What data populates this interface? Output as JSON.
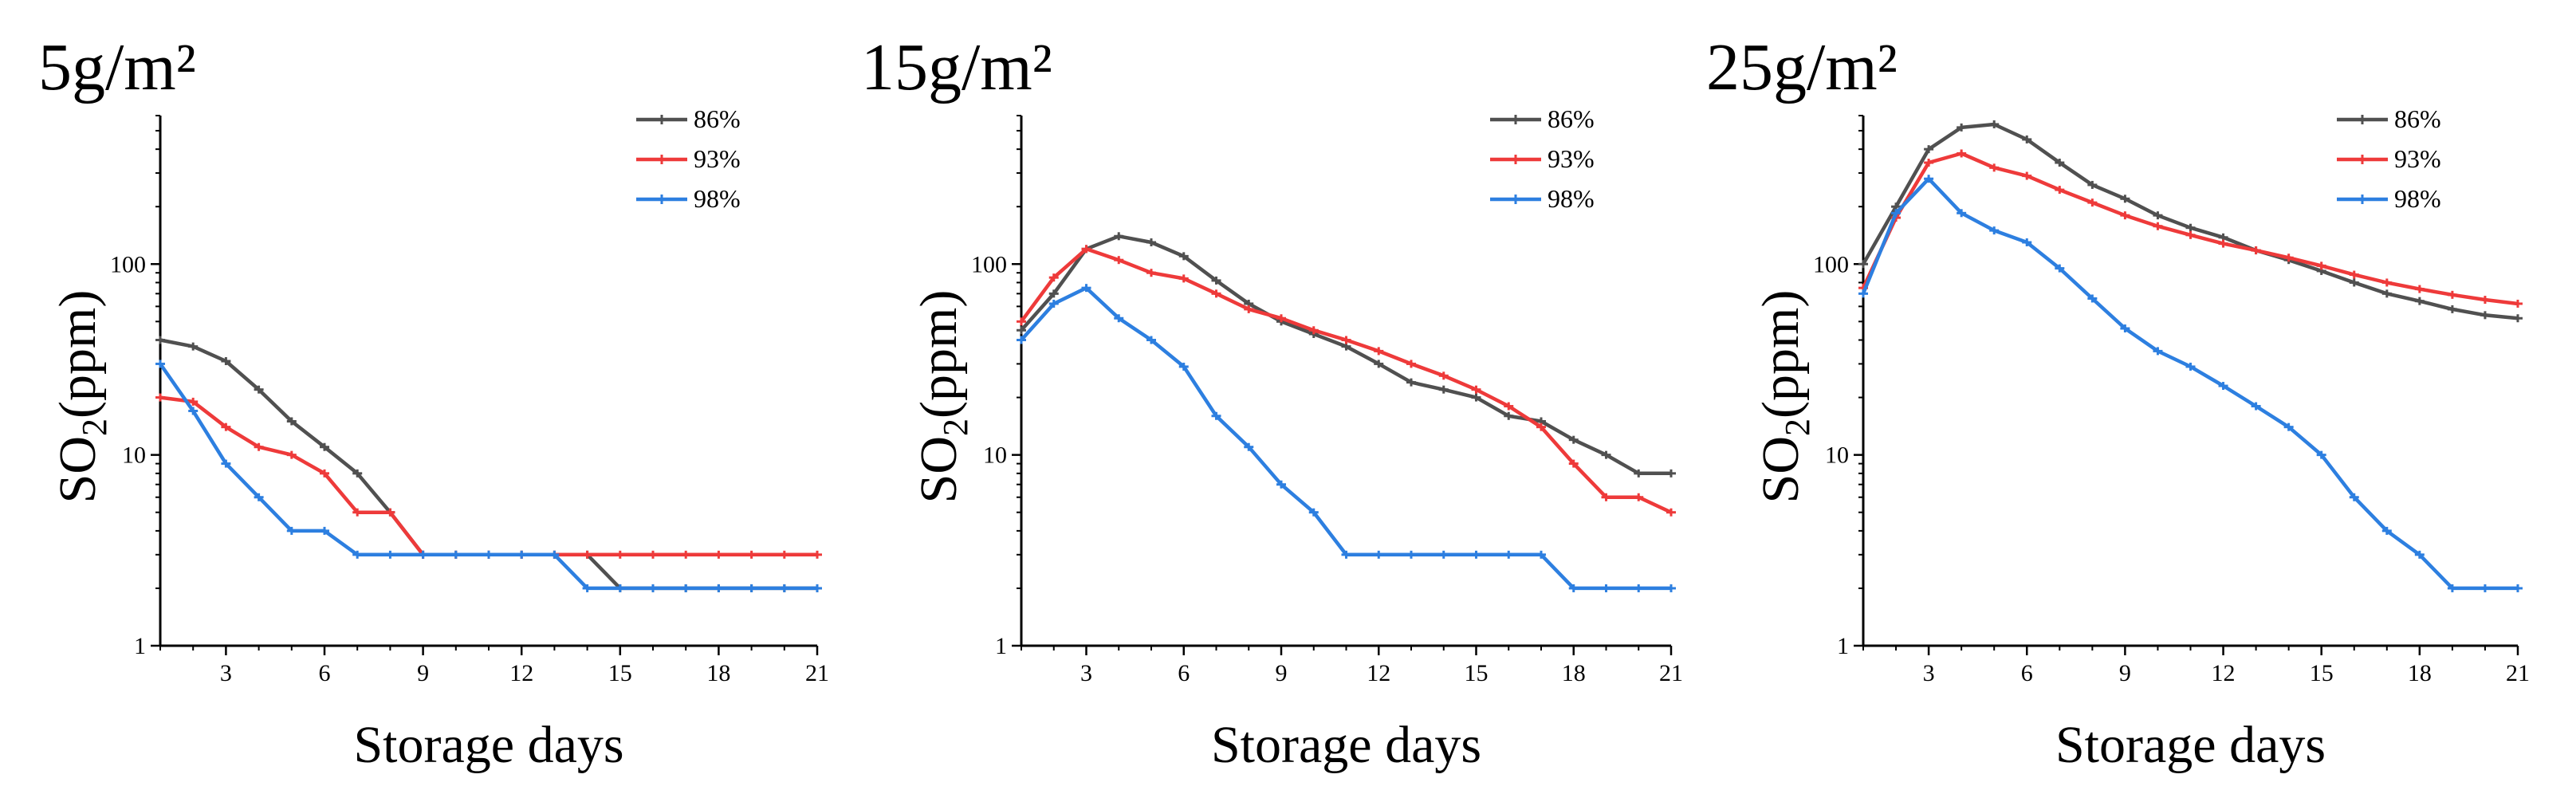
{
  "chart_data": [
    {
      "type": "line",
      "title": "5g/m²",
      "xlabel": "Storage days",
      "ylabel_main": "SO",
      "ylabel_sub": "2",
      "ylabel_tail": "(ppm)",
      "yscale": "log",
      "xlim": [
        1,
        21
      ],
      "ylim": [
        1,
        600
      ],
      "xticks": [
        3,
        6,
        9,
        12,
        15,
        18,
        21
      ],
      "yticks": [
        1,
        10,
        100
      ],
      "legend": "top-right",
      "x": [
        1,
        2,
        3,
        4,
        5,
        6,
        7,
        8,
        9,
        10,
        11,
        12,
        13,
        14,
        15,
        16,
        17,
        18,
        19,
        20,
        21
      ],
      "series": [
        {
          "name": "86%",
          "color": "#505050",
          "values": [
            40,
            37,
            31,
            22,
            15,
            11,
            8,
            5,
            3,
            3,
            3,
            3,
            3,
            3,
            2,
            2,
            2,
            2,
            2,
            2,
            2
          ]
        },
        {
          "name": "93%",
          "color": "#ee3a3a",
          "values": [
            20,
            19,
            14,
            11,
            10,
            8,
            5,
            5,
            3,
            3,
            3,
            3,
            3,
            3,
            3,
            3,
            3,
            3,
            3,
            3,
            3
          ]
        },
        {
          "name": "98%",
          "color": "#2d7fe0",
          "values": [
            30,
            17,
            9,
            6,
            4,
            4,
            3,
            3,
            3,
            3,
            3,
            3,
            3,
            2,
            2,
            2,
            2,
            2,
            2,
            2,
            2
          ]
        }
      ]
    },
    {
      "type": "line",
      "title": "15g/m²",
      "xlabel": "Storage days",
      "ylabel_main": "SO",
      "ylabel_sub": "2",
      "ylabel_tail": "(ppm)",
      "yscale": "log",
      "xlim": [
        1,
        21
      ],
      "ylim": [
        1,
        600
      ],
      "xticks": [
        3,
        6,
        9,
        12,
        15,
        18,
        21
      ],
      "yticks": [
        1,
        10,
        100
      ],
      "legend": "top-right",
      "x": [
        1,
        2,
        3,
        4,
        5,
        6,
        7,
        8,
        9,
        10,
        11,
        12,
        13,
        14,
        15,
        16,
        17,
        18,
        19,
        20,
        21
      ],
      "series": [
        {
          "name": "86%",
          "color": "#505050",
          "values": [
            45,
            70,
            120,
            140,
            130,
            110,
            82,
            62,
            50,
            43,
            37,
            30,
            24,
            22,
            20,
            16,
            15,
            12,
            10,
            8,
            8
          ]
        },
        {
          "name": "93%",
          "color": "#ee3a3a",
          "values": [
            50,
            85,
            120,
            105,
            90,
            84,
            70,
            58,
            52,
            45,
            40,
            35,
            30,
            26,
            22,
            18,
            14,
            9,
            6,
            6,
            5
          ]
        },
        {
          "name": "98%",
          "color": "#2d7fe0",
          "values": [
            40,
            62,
            75,
            52,
            40,
            29,
            16,
            11,
            7,
            5,
            3,
            3,
            3,
            3,
            3,
            3,
            3,
            2,
            2,
            2,
            2
          ]
        }
      ]
    },
    {
      "type": "line",
      "title": "25g/m²",
      "xlabel": "Storage days",
      "ylabel_main": "SO",
      "ylabel_sub": "2",
      "ylabel_tail": "(ppm)",
      "yscale": "log",
      "xlim": [
        1,
        21
      ],
      "ylim": [
        1,
        600
      ],
      "xticks": [
        3,
        6,
        9,
        12,
        15,
        18,
        21
      ],
      "yticks": [
        1,
        10,
        100
      ],
      "legend": "top-right",
      "x": [
        1,
        2,
        3,
        4,
        5,
        6,
        7,
        8,
        9,
        10,
        11,
        12,
        13,
        14,
        15,
        16,
        17,
        18,
        19,
        20,
        21
      ],
      "series": [
        {
          "name": "86%",
          "color": "#505050",
          "values": [
            100,
            200,
            400,
            520,
            540,
            450,
            340,
            260,
            220,
            180,
            155,
            138,
            118,
            105,
            92,
            80,
            70,
            64,
            58,
            54,
            52
          ]
        },
        {
          "name": "93%",
          "color": "#ee3a3a",
          "values": [
            75,
            175,
            340,
            380,
            320,
            290,
            245,
            210,
            180,
            158,
            142,
            128,
            118,
            108,
            98,
            88,
            80,
            74,
            69,
            65,
            62
          ]
        },
        {
          "name": "98%",
          "color": "#2d7fe0",
          "values": [
            70,
            185,
            280,
            185,
            150,
            130,
            95,
            66,
            46,
            35,
            29,
            23,
            18,
            14,
            10,
            6,
            4,
            3,
            2,
            2,
            2
          ]
        }
      ]
    }
  ]
}
